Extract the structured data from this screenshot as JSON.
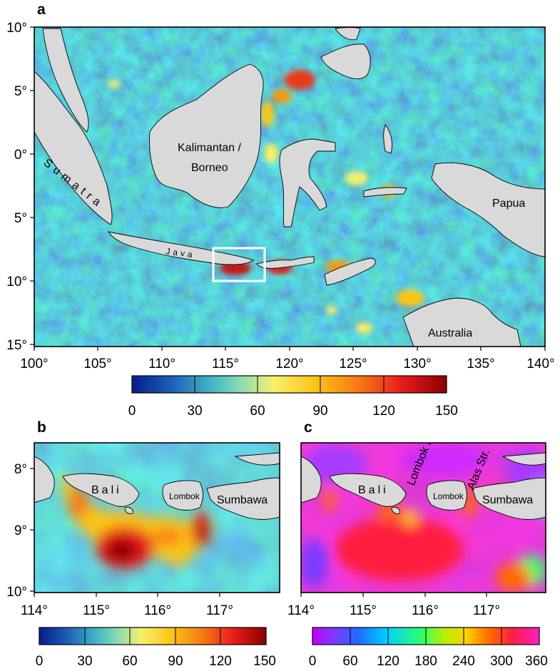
{
  "figure": {
    "panels": [
      {
        "letter": "a",
        "lon_ticks": [
          "100°",
          "105°",
          "110°",
          "115°",
          "120°",
          "125°",
          "130°",
          "135°",
          "140°"
        ],
        "lat_ticks": [
          "10°",
          "5°",
          "0°",
          "5°",
          "10°",
          "15°"
        ],
        "labels": {
          "kalimantan": "Kalimantan /",
          "borneo": "Borneo",
          "sumatra": "Sumatra",
          "java": "Java",
          "papua": "Papua",
          "australia": "Australia"
        },
        "colorbar": {
          "ticks": [
            "0",
            "30",
            "60",
            "90",
            "120",
            "150"
          ],
          "colors": [
            "#081d8c",
            "#1d5bb5",
            "#3fb5c6",
            "#8fdcb2",
            "#f7f06a",
            "#fcc419",
            "#f77a13",
            "#e81b1b",
            "#8a0000"
          ]
        },
        "inset_box_label": ""
      },
      {
        "letter": "b",
        "lon_ticks": [
          "114°",
          "115°",
          "116°",
          "117°"
        ],
        "lat_ticks": [
          "8°",
          "9°",
          "10°"
        ],
        "labels": {
          "bali": "Bali",
          "lombok": "Lombok",
          "sumbawa": "Sumbawa"
        },
        "colorbar": {
          "ticks": [
            "0",
            "30",
            "60",
            "90",
            "120",
            "150"
          ],
          "colors": [
            "#081d8c",
            "#1d5bb5",
            "#3fb5c6",
            "#8fdcb2",
            "#f7f06a",
            "#fcc419",
            "#f77a13",
            "#e81b1b",
            "#8a0000"
          ]
        }
      },
      {
        "letter": "c",
        "lon_ticks": [
          "114°",
          "115°",
          "116°",
          "117°"
        ],
        "labels": {
          "bali": "Bali",
          "lombok": "Lombok",
          "sumbawa": "Sumbawa",
          "lombok_strait": "Lombok Str.",
          "alas_strait": "Alas Str."
        },
        "colorbar": {
          "ticks": [
            "0",
            "60",
            "120",
            "180",
            "240",
            "300",
            "360"
          ],
          "colors": [
            "#c300ff",
            "#7a3bff",
            "#1e6bff",
            "#00d2ff",
            "#2dff6a",
            "#b6f000",
            "#ffd100",
            "#ff6a00",
            "#ff1e3c",
            "#ff1ec8"
          ]
        }
      }
    ]
  }
}
